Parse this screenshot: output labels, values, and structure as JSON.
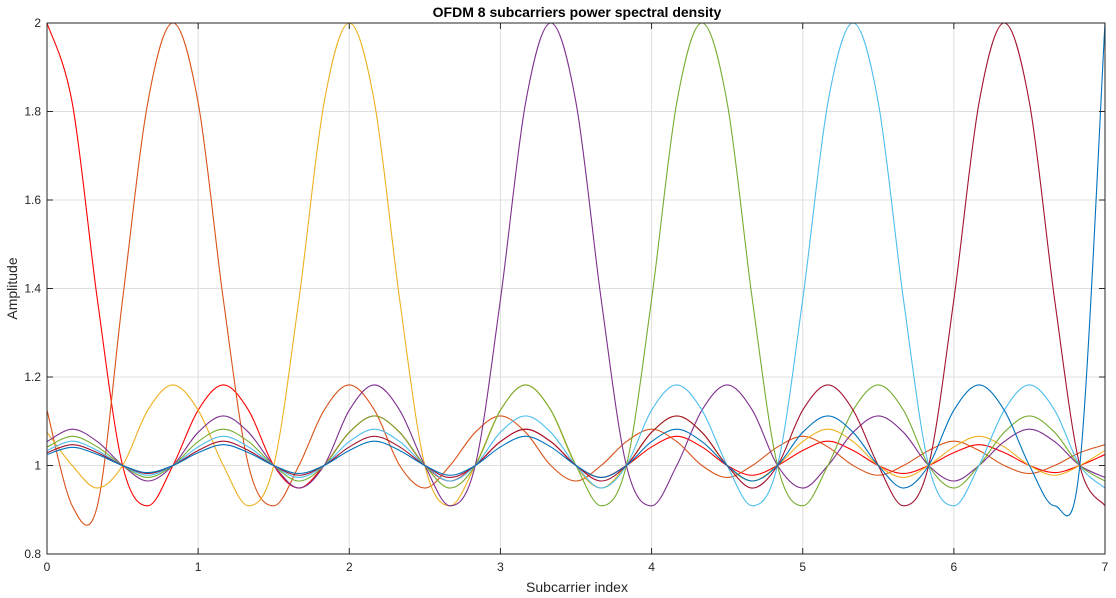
{
  "chart_data": {
    "type": "line",
    "title": "OFDM 8 subcarriers power spectral density",
    "xlabel": "Subcarrier index",
    "ylabel": "Amplitude",
    "xlim": [
      0,
      7
    ],
    "ylim": [
      0.8,
      2
    ],
    "xticks": [
      "0",
      "1",
      "2",
      "3",
      "4",
      "5",
      "6",
      "7"
    ],
    "yticks": [
      "0.8",
      "1",
      "1.2",
      "1.4",
      "1.6",
      "1.8",
      "2"
    ],
    "grid": true,
    "x_sample_points": [
      0,
      0.1667,
      0.3333,
      0.5,
      0.6667,
      0.8333,
      1,
      1.1667,
      1.3333,
      1.5,
      1.6667,
      1.8333,
      2,
      2.1667,
      2.3333,
      2.5,
      2.6667,
      2.8333,
      3,
      3.1667,
      3.3333,
      3.5,
      3.6667,
      3.8333,
      4,
      4.1667,
      4.3333,
      4.5,
      4.6667,
      4.8333,
      5,
      5.1667,
      5.3333,
      5.5,
      5.6667,
      5.8333,
      6,
      6.1667,
      6.3333,
      6.5,
      6.6667,
      6.8333,
      7
    ],
    "series": [
      {
        "color": "#ff0000",
        "values": [
          2.0,
          1.82,
          1.375,
          1.0,
          0.909,
          1.0,
          1.125,
          1.182,
          1.125,
          1.0,
          0.949,
          1.0,
          1.075,
          1.112,
          1.075,
          1.0,
          0.965,
          1.0,
          1.054,
          1.082,
          1.054,
          1.0,
          0.973,
          1.0,
          1.042,
          1.066,
          1.042,
          1.0,
          0.978,
          1.0,
          1.034,
          1.055,
          1.034,
          1.0,
          0.982,
          1.0,
          1.029,
          1.047,
          1.029,
          1.0,
          0.984,
          1.0,
          1.025
        ]
      },
      {
        "color": "#d95319",
        "values": [
          1.125,
          0.909,
          0.909,
          1.375,
          1.82,
          2.0,
          1.82,
          1.375,
          1.0,
          0.909,
          1.0,
          1.125,
          1.182,
          1.125,
          1.0,
          0.949,
          1.0,
          1.075,
          1.112,
          1.075,
          1.0,
          0.965,
          1.0,
          1.054,
          1.082,
          1.054,
          1.0,
          0.973,
          1.0,
          1.042,
          1.066,
          1.042,
          1.0,
          0.978,
          1.0,
          1.034,
          1.055,
          1.034,
          1.0,
          0.982,
          1.0,
          1.029,
          1.047
        ]
      },
      {
        "color": "#edb120",
        "values": [
          1.075,
          1.0,
          0.949,
          1.0,
          1.125,
          1.182,
          1.125,
          1.0,
          0.909,
          1.0,
          1.375,
          1.82,
          2.0,
          1.82,
          1.375,
          1.0,
          0.909,
          1.0,
          1.125,
          1.182,
          1.125,
          1.0,
          0.949,
          1.0,
          1.075,
          1.112,
          1.075,
          1.0,
          0.965,
          1.0,
          1.054,
          1.082,
          1.054,
          1.0,
          0.973,
          1.0,
          1.042,
          1.066,
          1.042,
          1.0,
          0.978,
          1.0,
          1.034
        ]
      },
      {
        "color": "#7e2f8e",
        "values": [
          1.054,
          1.082,
          1.054,
          1.0,
          0.965,
          1.0,
          1.075,
          1.112,
          1.075,
          1.0,
          0.949,
          1.0,
          1.125,
          1.182,
          1.125,
          1.0,
          0.909,
          1.0,
          1.375,
          1.82,
          2.0,
          1.82,
          1.375,
          1.0,
          0.909,
          1.0,
          1.125,
          1.182,
          1.125,
          1.0,
          0.949,
          1.0,
          1.075,
          1.112,
          1.075,
          1.0,
          0.965,
          1.0,
          1.054,
          1.082,
          1.054,
          1.0,
          0.973
        ]
      },
      {
        "color": "#77ac30",
        "values": [
          1.042,
          1.066,
          1.042,
          1.0,
          0.973,
          1.0,
          1.054,
          1.082,
          1.054,
          1.0,
          0.965,
          1.0,
          1.075,
          1.112,
          1.075,
          1.0,
          0.949,
          1.0,
          1.125,
          1.182,
          1.125,
          1.0,
          0.909,
          1.0,
          1.375,
          1.82,
          2.0,
          1.82,
          1.375,
          1.0,
          0.909,
          1.0,
          1.125,
          1.182,
          1.125,
          1.0,
          0.949,
          1.0,
          1.075,
          1.112,
          1.075,
          1.0,
          0.965
        ]
      },
      {
        "color": "#4dbeee",
        "values": [
          1.034,
          1.055,
          1.034,
          1.0,
          0.978,
          1.0,
          1.042,
          1.066,
          1.042,
          1.0,
          0.973,
          1.0,
          1.054,
          1.082,
          1.054,
          1.0,
          0.965,
          1.0,
          1.075,
          1.112,
          1.075,
          1.0,
          0.949,
          1.0,
          1.125,
          1.182,
          1.125,
          1.0,
          0.909,
          1.0,
          1.375,
          1.82,
          2.0,
          1.82,
          1.375,
          1.0,
          0.909,
          1.0,
          1.125,
          1.182,
          1.125,
          1.0,
          0.949
        ]
      },
      {
        "color": "#a2142f",
        "values": [
          1.029,
          1.047,
          1.029,
          1.0,
          0.982,
          1.0,
          1.034,
          1.055,
          1.034,
          1.0,
          0.978,
          1.0,
          1.042,
          1.066,
          1.042,
          1.0,
          0.973,
          1.0,
          1.054,
          1.082,
          1.054,
          1.0,
          0.965,
          1.0,
          1.075,
          1.112,
          1.075,
          1.0,
          0.949,
          1.0,
          1.125,
          1.182,
          1.125,
          1.0,
          0.909,
          1.0,
          1.375,
          1.82,
          2.0,
          1.82,
          1.375,
          1.0,
          0.909
        ]
      },
      {
        "color": "#0072bd",
        "values": [
          1.025,
          1.041,
          1.025,
          1.0,
          0.984,
          1.0,
          1.029,
          1.047,
          1.029,
          1.0,
          0.982,
          1.0,
          1.034,
          1.055,
          1.034,
          1.0,
          0.978,
          1.0,
          1.042,
          1.066,
          1.042,
          1.0,
          0.973,
          1.0,
          1.054,
          1.082,
          1.054,
          1.0,
          0.965,
          1.0,
          1.075,
          1.112,
          1.075,
          1.0,
          0.949,
          1.0,
          1.125,
          1.182,
          1.125,
          1.0,
          0.909,
          1.0,
          2.0
        ]
      }
    ]
  }
}
